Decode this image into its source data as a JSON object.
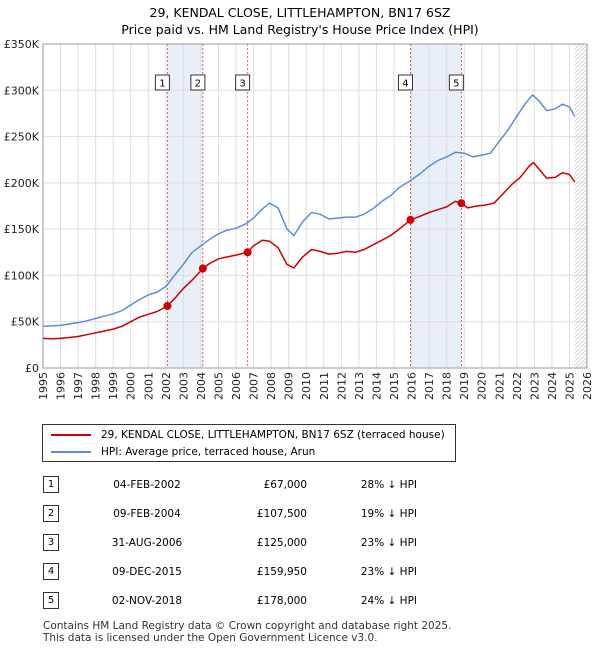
{
  "chart_data": {
    "type": "line",
    "title": "29, KENDAL CLOSE, LITTLEHAMPTON, BN17 6SZ",
    "subtitle": "Price paid vs. HM Land Registry's House Price Index (HPI)",
    "ylim": [
      0,
      350000
    ],
    "xlim": [
      1995,
      2026
    ],
    "y_ticks": [
      {
        "value": 0,
        "label": "£0"
      },
      {
        "value": 50000,
        "label": "£50K"
      },
      {
        "value": 100000,
        "label": "£100K"
      },
      {
        "value": 150000,
        "label": "£150K"
      },
      {
        "value": 200000,
        "label": "£200K"
      },
      {
        "value": 250000,
        "label": "£250K"
      },
      {
        "value": 300000,
        "label": "£300K"
      },
      {
        "value": 350000,
        "label": "£350K"
      }
    ],
    "x_ticks": [
      1995,
      1996,
      1997,
      1998,
      1999,
      2000,
      2001,
      2002,
      2003,
      2004,
      2005,
      2006,
      2007,
      2008,
      2009,
      2010,
      2011,
      2012,
      2013,
      2014,
      2015,
      2016,
      2017,
      2018,
      2019,
      2020,
      2021,
      2022,
      2023,
      2024,
      2025,
      2026
    ],
    "series": [
      {
        "name": "29, KENDAL CLOSE, LITTLEHAMPTON, BN17 6SZ (terraced house)",
        "color": "#cc0000",
        "points": [
          [
            1995.0,
            32000
          ],
          [
            1995.5,
            31500
          ],
          [
            1996.0,
            32000
          ],
          [
            1996.5,
            33000
          ],
          [
            1997.0,
            34000
          ],
          [
            1997.5,
            36000
          ],
          [
            1998.0,
            38000
          ],
          [
            1998.5,
            40000
          ],
          [
            1999.0,
            42000
          ],
          [
            1999.5,
            45000
          ],
          [
            2000.0,
            50000
          ],
          [
            2000.5,
            55000
          ],
          [
            2001.0,
            58000
          ],
          [
            2001.5,
            61000
          ],
          [
            2002.09,
            67000
          ],
          [
            2002.5,
            75000
          ],
          [
            2003.0,
            86000
          ],
          [
            2003.5,
            95000
          ],
          [
            2004.11,
            107500
          ],
          [
            2004.5,
            113000
          ],
          [
            2005.0,
            118000
          ],
          [
            2005.5,
            120000
          ],
          [
            2006.0,
            122000
          ],
          [
            2006.66,
            125000
          ],
          [
            2007.0,
            132000
          ],
          [
            2007.5,
            138000
          ],
          [
            2007.9,
            137000
          ],
          [
            2008.4,
            130000
          ],
          [
            2008.9,
            112000
          ],
          [
            2009.3,
            108000
          ],
          [
            2009.8,
            120000
          ],
          [
            2010.3,
            128000
          ],
          [
            2010.8,
            126000
          ],
          [
            2011.3,
            123000
          ],
          [
            2011.8,
            124000
          ],
          [
            2012.3,
            126000
          ],
          [
            2012.8,
            125000
          ],
          [
            2013.3,
            128000
          ],
          [
            2013.8,
            133000
          ],
          [
            2014.3,
            138000
          ],
          [
            2014.8,
            143000
          ],
          [
            2015.3,
            150000
          ],
          [
            2015.94,
            159950
          ],
          [
            2016.5,
            164000
          ],
          [
            2017.0,
            168000
          ],
          [
            2017.5,
            171000
          ],
          [
            2018.0,
            174000
          ],
          [
            2018.5,
            180000
          ],
          [
            2018.84,
            178000
          ],
          [
            2019.2,
            173000
          ],
          [
            2019.7,
            175000
          ],
          [
            2020.2,
            176000
          ],
          [
            2020.7,
            178000
          ],
          [
            2021.2,
            188000
          ],
          [
            2021.7,
            198000
          ],
          [
            2022.2,
            206000
          ],
          [
            2022.7,
            218000
          ],
          [
            2022.95,
            222000
          ],
          [
            2023.3,
            214000
          ],
          [
            2023.7,
            205000
          ],
          [
            2024.2,
            206000
          ],
          [
            2024.6,
            211000
          ],
          [
            2025.0,
            209000
          ],
          [
            2025.3,
            201000
          ]
        ]
      },
      {
        "name": "HPI: Average price, terraced house, Arun",
        "color": "#5b8fd0",
        "points": [
          [
            1995.0,
            45000
          ],
          [
            1995.5,
            45500
          ],
          [
            1996.0,
            46000
          ],
          [
            1996.5,
            47500
          ],
          [
            1997.0,
            49000
          ],
          [
            1997.5,
            51000
          ],
          [
            1998.0,
            53500
          ],
          [
            1998.5,
            56000
          ],
          [
            1999.0,
            58500
          ],
          [
            1999.5,
            62000
          ],
          [
            2000.0,
            68000
          ],
          [
            2000.5,
            74000
          ],
          [
            2001.0,
            79000
          ],
          [
            2001.5,
            82000
          ],
          [
            2002.0,
            88000
          ],
          [
            2002.5,
            100000
          ],
          [
            2003.0,
            112000
          ],
          [
            2003.5,
            125000
          ],
          [
            2004.0,
            132000
          ],
          [
            2004.5,
            139000
          ],
          [
            2005.0,
            145000
          ],
          [
            2005.5,
            149000
          ],
          [
            2006.0,
            151000
          ],
          [
            2006.5,
            155000
          ],
          [
            2007.0,
            162000
          ],
          [
            2007.5,
            172000
          ],
          [
            2007.9,
            178000
          ],
          [
            2008.4,
            173000
          ],
          [
            2008.9,
            150000
          ],
          [
            2009.3,
            143000
          ],
          [
            2009.8,
            158000
          ],
          [
            2010.3,
            168000
          ],
          [
            2010.8,
            166000
          ],
          [
            2011.3,
            161000
          ],
          [
            2011.8,
            162000
          ],
          [
            2012.3,
            163000
          ],
          [
            2012.8,
            163000
          ],
          [
            2013.3,
            166000
          ],
          [
            2013.8,
            172000
          ],
          [
            2014.3,
            180000
          ],
          [
            2014.8,
            186000
          ],
          [
            2015.3,
            195000
          ],
          [
            2015.9,
            202000
          ],
          [
            2016.5,
            210000
          ],
          [
            2017.0,
            218000
          ],
          [
            2017.5,
            224000
          ],
          [
            2018.0,
            228000
          ],
          [
            2018.5,
            233000
          ],
          [
            2019.0,
            232000
          ],
          [
            2019.5,
            228000
          ],
          [
            2020.0,
            230000
          ],
          [
            2020.5,
            232000
          ],
          [
            2021.0,
            245000
          ],
          [
            2021.5,
            257000
          ],
          [
            2022.0,
            272000
          ],
          [
            2022.5,
            286000
          ],
          [
            2022.9,
            295000
          ],
          [
            2023.3,
            288000
          ],
          [
            2023.7,
            278000
          ],
          [
            2024.2,
            280000
          ],
          [
            2024.6,
            285000
          ],
          [
            2025.0,
            282000
          ],
          [
            2025.3,
            272000
          ]
        ]
      }
    ],
    "sales": [
      {
        "id": "1",
        "date": "04-FEB-2002",
        "price": "£67,000",
        "hpi": "28% ↓ HPI",
        "x": 2002.09,
        "y": 67000
      },
      {
        "id": "2",
        "date": "09-FEB-2004",
        "price": "£107,500",
        "hpi": "19% ↓ HPI",
        "x": 2004.11,
        "y": 107500
      },
      {
        "id": "3",
        "date": "31-AUG-2006",
        "price": "£125,000",
        "hpi": "23% ↓ HPI",
        "x": 2006.66,
        "y": 125000
      },
      {
        "id": "4",
        "date": "09-DEC-2015",
        "price": "£159,950",
        "hpi": "23% ↓ HPI",
        "x": 2015.94,
        "y": 159950
      },
      {
        "id": "5",
        "date": "02-NOV-2018",
        "price": "£178,000",
        "hpi": "24% ↓ HPI",
        "x": 2018.84,
        "y": 178000
      }
    ],
    "shaded_periods": [
      [
        2002.09,
        2004.11
      ],
      [
        2015.94,
        2018.84
      ]
    ],
    "projection_start": 2025.3,
    "grid": true
  },
  "legend": {
    "house_label": "29, KENDAL CLOSE, LITTLEHAMPTON, BN17 6SZ (terraced house)",
    "hpi_label": "HPI: Average price, terraced house, Arun"
  },
  "footer": {
    "line1": "Contains HM Land Registry data © Crown copyright and database right 2025.",
    "line2": "This data is licensed under the Open Government Licence v3.0."
  }
}
